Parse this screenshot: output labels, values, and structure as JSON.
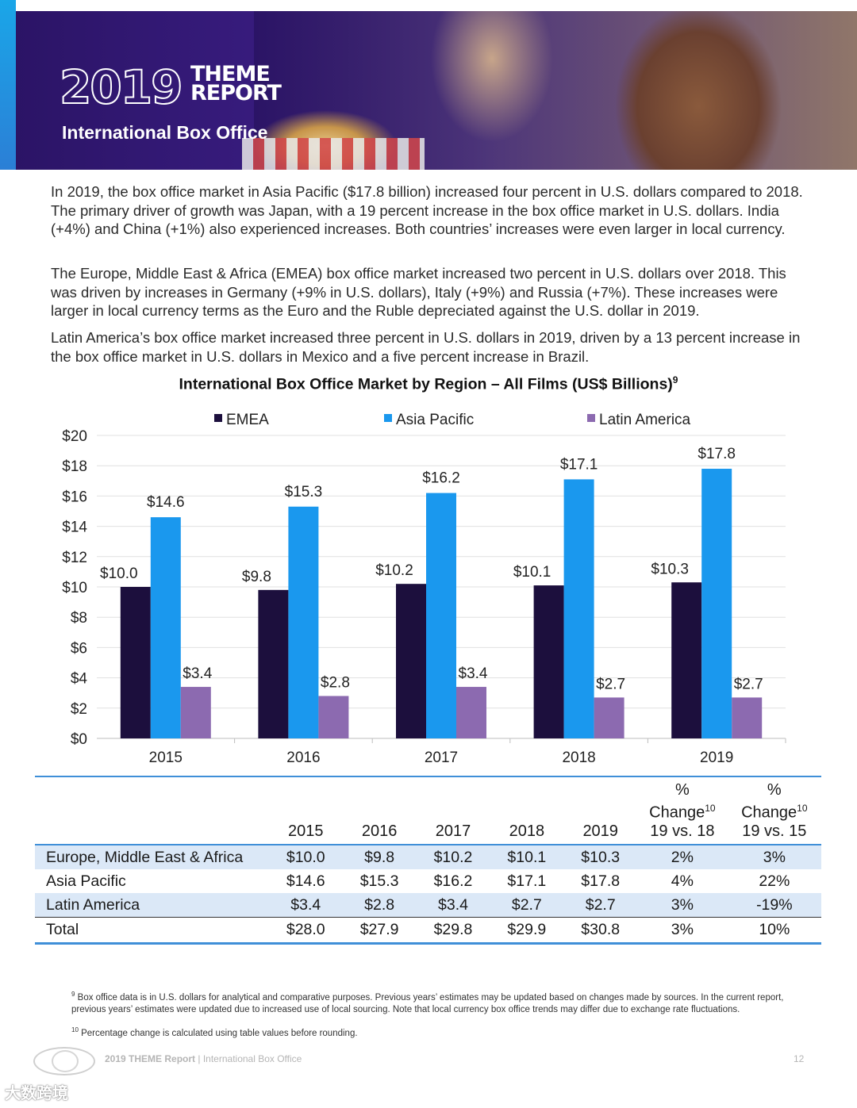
{
  "header": {
    "year": "2019",
    "report_title_line1": "THEME",
    "report_title_line2": "REPORT",
    "section_title": "International Box Office"
  },
  "paragraphs": [
    "In 2019, the box office market in Asia Pacific ($17.8 billion) increased four percent in U.S. dollars compared to 2018. The primary driver of growth was Japan, with a 19 percent increase in the box office market in U.S. dollars. India (+4%) and China (+1%) also experienced increases. Both countries’ increases were even larger in local currency.",
    "The Europe, Middle East & Africa (EMEA) box office market increased two percent in U.S. dollars over 2018. This was driven by increases in Germany (+9% in U.S. dollars), Italy (+9%) and Russia (+7%). These increases were larger in local currency terms as the Euro and the Ruble depreciated against the U.S. dollar in 2019.",
    "Latin America’s box office market increased three percent in U.S. dollars in 2019, driven by a 13 percent increase in the box office market in U.S. dollars in Mexico and a five percent increase in Brazil."
  ],
  "chart_data": {
    "type": "bar",
    "title": "International Box Office Market by Region – All Films (US$ Billions)",
    "title_footnote": "9",
    "categories": [
      "2015",
      "2016",
      "2017",
      "2018",
      "2019"
    ],
    "series": [
      {
        "name": "EMEA",
        "color": "#1c0f3d",
        "values": [
          10.0,
          9.8,
          10.2,
          10.1,
          10.3
        ],
        "labels": [
          "$10.0",
          "$9.8",
          "$10.2",
          "$10.1",
          "$10.3"
        ]
      },
      {
        "name": "Asia Pacific",
        "color": "#1a98ee",
        "values": [
          14.6,
          15.3,
          16.2,
          17.1,
          17.8
        ],
        "labels": [
          "$14.6",
          "$15.3",
          "$16.2",
          "$17.1",
          "$17.8"
        ]
      },
      {
        "name": "Latin America",
        "color": "#8c6ab0",
        "values": [
          3.4,
          2.8,
          3.4,
          2.7,
          2.7
        ],
        "labels": [
          "$3.4",
          "$2.8",
          "$3.4",
          "$2.7",
          "$2.7"
        ]
      }
    ],
    "ylim": [
      0,
      20
    ],
    "yticks": [
      "$0",
      "$2",
      "$4",
      "$6",
      "$8",
      "$10",
      "$12",
      "$14",
      "$16",
      "$18",
      "$20"
    ],
    "grid": true,
    "legend_position": "top"
  },
  "table": {
    "headers": [
      "",
      "2015",
      "2016",
      "2017",
      "2018",
      "2019",
      "% Change",
      "% Change"
    ],
    "change_headers": [
      {
        "pct": "%",
        "word": "Change",
        "sup": "10",
        "period": "19 vs. 18"
      },
      {
        "pct": "%",
        "word": "Change",
        "sup": "10",
        "period": "19 vs. 15"
      }
    ],
    "rows": [
      [
        "Europe, Middle East & Africa",
        "$10.0",
        "$9.8",
        "$10.2",
        "$10.1",
        "$10.3",
        "2%",
        "3%"
      ],
      [
        "Asia Pacific",
        "$14.6",
        "$15.3",
        "$16.2",
        "$17.1",
        "$17.8",
        "4%",
        "22%"
      ],
      [
        "Latin America",
        "$3.4",
        "$2.8",
        "$3.4",
        "$2.7",
        "$2.7",
        "3%",
        "-19%"
      ],
      [
        "Total",
        "$28.0",
        "$27.9",
        "$29.8",
        "$29.9",
        "$30.8",
        "3%",
        "10%"
      ]
    ]
  },
  "footnotes": [
    {
      "num": "9",
      "text": "Box office data is in U.S. dollars for analytical and comparative purposes. Previous years’ estimates may be updated based on changes made by sources. In the current report, previous years’ estimates were updated due to increased use of local sourcing. Note that local currency box office trends may differ due to exchange rate fluctuations."
    },
    {
      "num": "10",
      "text": "Percentage change is calculated using table values before rounding."
    }
  ],
  "footer": {
    "report_name": "2019 THEME Report",
    "separator": " | ",
    "section": "International Box Office",
    "page_number": "12"
  },
  "watermark": "大数跨境"
}
